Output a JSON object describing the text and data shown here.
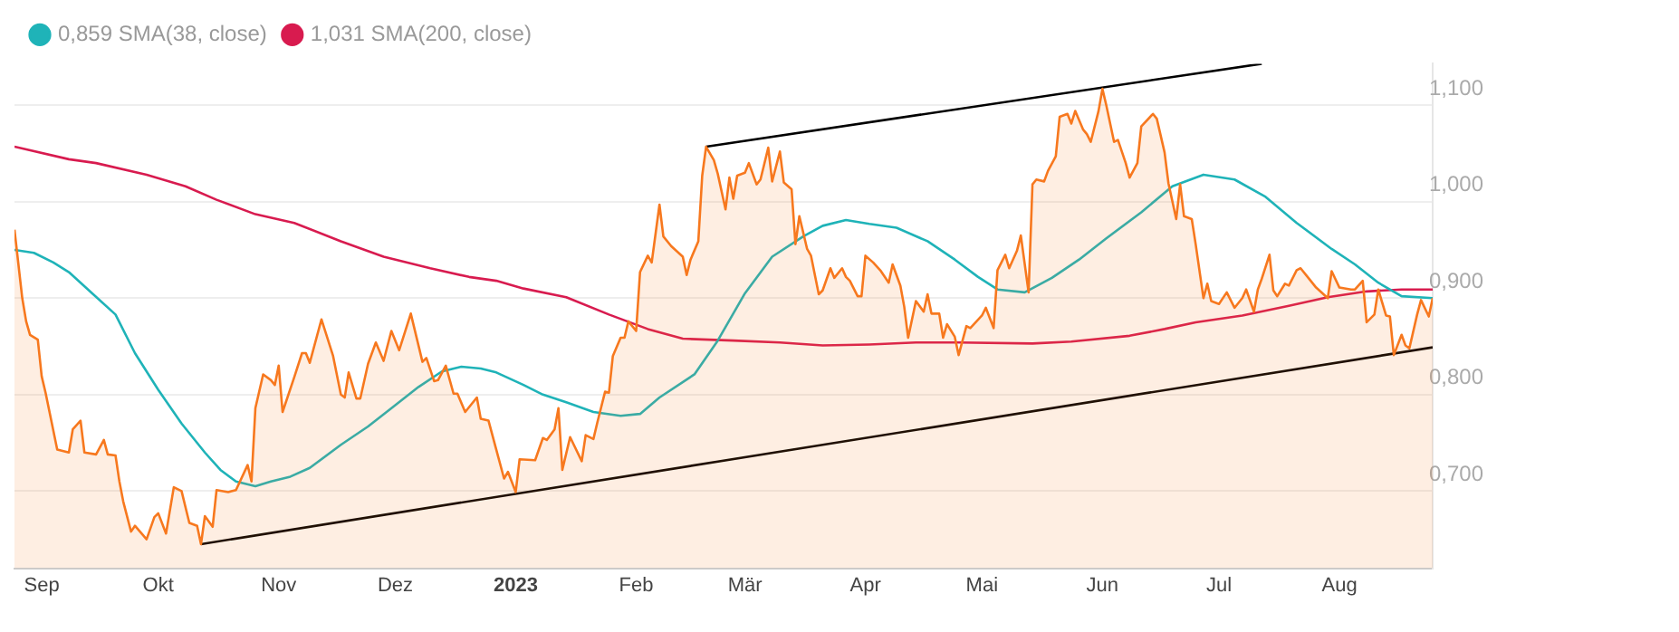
{
  "chart_data": {
    "type": "line",
    "legend": "top left",
    "grid": "y",
    "marker": "none",
    "line_style": "solid",
    "xlim": [
      "2022-08-25",
      "2023-08-25"
    ],
    "xticks": [
      {
        "value": "2022-09-01",
        "label": "Sep"
      },
      {
        "value": "2022-10-01",
        "label": "Okt"
      },
      {
        "value": "2022-11-01",
        "label": "Nov"
      },
      {
        "value": "2022-12-01",
        "label": "Dez"
      },
      {
        "value": "2023-01-01",
        "label": "2023"
      },
      {
        "value": "2023-02-01",
        "label": "Feb"
      },
      {
        "value": "2023-03-01",
        "label": "Mär"
      },
      {
        "value": "2023-04-01",
        "label": "Apr"
      },
      {
        "value": "2023-05-01",
        "label": "Mai"
      },
      {
        "value": "2023-06-01",
        "label": "Jun"
      },
      {
        "value": "2023-07-01",
        "label": "Jul"
      },
      {
        "value": "2023-08-01",
        "label": "Aug"
      }
    ],
    "ylim": [
      0.62,
      1.143
    ],
    "yticks": [
      {
        "value": 0.7,
        "label": "0,700"
      },
      {
        "value": 0.8,
        "label": "0,800"
      },
      {
        "value": 0.9,
        "label": "0,900"
      },
      {
        "value": 1.0,
        "label": "1,000"
      },
      {
        "value": 1.1,
        "label": "1,100"
      }
    ],
    "series": [
      {
        "type": "area",
        "color": "#f7781e",
        "x": [
          "2022-08-25",
          "2022-08-27",
          "2022-08-28",
          "2022-08-29",
          "2022-08-31",
          "2022-09-01",
          "2022-09-02",
          "2022-09-05",
          "2022-09-08",
          "2022-09-09",
          "2022-09-11",
          "2022-09-12",
          "2022-09-15",
          "2022-09-17",
          "2022-09-18",
          "2022-09-20",
          "2022-09-21",
          "2022-09-22",
          "2022-09-24",
          "2022-09-25",
          "2022-09-28",
          "2022-09-30",
          "2022-10-01",
          "2022-10-03",
          "2022-10-05",
          "2022-10-07",
          "2022-10-09",
          "2022-10-11",
          "2022-10-12",
          "2022-10-13",
          "2022-10-15",
          "2022-10-16",
          "2022-10-19",
          "2022-10-21",
          "2022-10-24",
          "2022-10-25",
          "2022-10-26",
          "2022-10-28",
          "2022-10-30",
          "2022-10-31",
          "2022-11-01",
          "2022-11-02",
          "2022-11-05",
          "2022-11-07",
          "2022-11-08",
          "2022-11-09",
          "2022-11-12",
          "2022-11-15",
          "2022-11-17",
          "2022-11-18",
          "2022-11-19",
          "2022-11-21",
          "2022-11-22",
          "2022-11-24",
          "2022-11-26",
          "2022-11-28",
          "2022-11-30",
          "2022-12-02",
          "2022-12-05",
          "2022-12-08",
          "2022-12-09",
          "2022-12-11",
          "2022-12-12",
          "2022-12-14",
          "2022-12-16",
          "2022-12-17",
          "2022-12-19",
          "2022-12-22",
          "2022-12-23",
          "2022-12-25",
          "2022-12-27",
          "2022-12-29",
          "2022-12-30",
          "2023-01-01",
          "2023-01-02",
          "2023-01-06",
          "2023-01-08",
          "2023-01-09",
          "2023-01-11",
          "2023-01-12",
          "2023-01-13",
          "2023-01-15",
          "2023-01-18",
          "2023-01-19",
          "2023-01-21",
          "2023-01-22",
          "2023-01-24",
          "2023-01-25",
          "2023-01-26",
          "2023-01-28",
          "2023-01-29",
          "2023-01-30",
          "2023-02-01",
          "2023-02-02",
          "2023-02-04",
          "2023-02-05",
          "2023-02-07",
          "2023-02-08",
          "2023-02-10",
          "2023-02-13",
          "2023-02-14",
          "2023-02-15",
          "2023-02-17",
          "2023-02-18",
          "2023-02-19",
          "2023-02-21",
          "2023-02-22",
          "2023-02-24",
          "2023-02-25",
          "2023-02-26",
          "2023-02-27",
          "2023-03-01",
          "2023-03-02",
          "2023-03-04",
          "2023-03-05",
          "2023-03-07",
          "2023-03-08",
          "2023-03-10",
          "2023-03-11",
          "2023-03-13",
          "2023-03-14",
          "2023-03-15",
          "2023-03-17",
          "2023-03-18",
          "2023-03-20",
          "2023-03-21",
          "2023-03-23",
          "2023-03-24",
          "2023-03-26",
          "2023-03-27",
          "2023-03-28",
          "2023-03-30",
          "2023-03-31",
          "2023-04-01",
          "2023-04-03",
          "2023-04-05",
          "2023-04-07",
          "2023-04-08",
          "2023-04-10",
          "2023-04-11",
          "2023-04-12",
          "2023-04-14",
          "2023-04-16",
          "2023-04-17",
          "2023-04-18",
          "2023-04-20",
          "2023-04-21",
          "2023-04-22",
          "2023-04-24",
          "2023-04-25",
          "2023-04-27",
          "2023-04-28",
          "2023-05-01",
          "2023-05-02",
          "2023-05-04",
          "2023-05-05",
          "2023-05-07",
          "2023-05-08",
          "2023-05-10",
          "2023-05-11",
          "2023-05-13",
          "2023-05-14",
          "2023-05-15",
          "2023-05-17",
          "2023-05-18",
          "2023-05-20",
          "2023-05-21",
          "2023-05-23",
          "2023-05-24",
          "2023-05-25",
          "2023-05-27",
          "2023-05-28",
          "2023-05-29",
          "2023-05-31",
          "2023-06-01",
          "2023-06-02",
          "2023-06-04",
          "2023-06-05",
          "2023-06-07",
          "2023-06-08",
          "2023-06-10",
          "2023-06-11",
          "2023-06-14",
          "2023-06-15",
          "2023-06-17",
          "2023-06-18",
          "2023-06-20",
          "2023-06-21",
          "2023-06-22",
          "2023-06-24",
          "2023-06-25",
          "2023-06-27",
          "2023-06-28",
          "2023-06-29",
          "2023-07-01",
          "2023-07-03",
          "2023-07-05",
          "2023-07-07",
          "2023-07-08",
          "2023-07-10",
          "2023-07-11",
          "2023-07-12",
          "2023-07-14",
          "2023-07-15",
          "2023-07-16",
          "2023-07-18",
          "2023-07-19",
          "2023-07-21",
          "2023-07-22",
          "2023-07-24",
          "2023-07-26",
          "2023-07-29",
          "2023-07-30",
          "2023-08-01",
          "2023-08-04",
          "2023-08-05",
          "2023-08-07",
          "2023-08-08",
          "2023-08-10",
          "2023-08-11",
          "2023-08-13",
          "2023-08-14",
          "2023-08-15",
          "2023-08-17",
          "2023-08-18",
          "2023-08-19",
          "2023-08-21",
          "2023-08-22",
          "2023-08-24",
          "2023-08-25"
        ],
        "values": [
          0.971,
          0.9,
          0.876,
          0.862,
          0.857,
          0.819,
          0.802,
          0.743,
          0.74,
          0.764,
          0.773,
          0.74,
          0.738,
          0.753,
          0.738,
          0.737,
          0.71,
          0.689,
          0.658,
          0.664,
          0.65,
          0.673,
          0.677,
          0.656,
          0.704,
          0.7,
          0.667,
          0.664,
          0.645,
          0.674,
          0.663,
          0.701,
          0.699,
          0.701,
          0.727,
          0.71,
          0.786,
          0.821,
          0.815,
          0.81,
          0.83,
          0.782,
          0.818,
          0.843,
          0.843,
          0.833,
          0.878,
          0.84,
          0.8,
          0.797,
          0.823,
          0.796,
          0.796,
          0.832,
          0.854,
          0.835,
          0.866,
          0.846,
          0.884,
          0.834,
          0.838,
          0.814,
          0.815,
          0.83,
          0.801,
          0.801,
          0.782,
          0.797,
          0.775,
          0.773,
          0.743,
          0.713,
          0.72,
          0.699,
          0.733,
          0.732,
          0.755,
          0.753,
          0.764,
          0.786,
          0.722,
          0.756,
          0.731,
          0.758,
          0.754,
          0.771,
          0.803,
          0.802,
          0.84,
          0.859,
          0.859,
          0.876,
          0.866,
          0.927,
          0.944,
          0.937,
          0.997,
          0.964,
          0.954,
          0.943,
          0.924,
          0.94,
          0.959,
          1.027,
          1.057,
          1.043,
          1.029,
          0.992,
          1.025,
          1.003,
          1.027,
          1.03,
          1.04,
          1.018,
          1.023,
          1.056,
          1.021,
          1.052,
          1.02,
          1.013,
          0.956,
          0.985,
          0.951,
          0.944,
          0.904,
          0.908,
          0.931,
          0.921,
          0.931,
          0.922,
          0.918,
          0.902,
          0.902,
          0.944,
          0.937,
          0.928,
          0.916,
          0.935,
          0.913,
          0.891,
          0.859,
          0.897,
          0.886,
          0.904,
          0.884,
          0.884,
          0.859,
          0.873,
          0.86,
          0.841,
          0.871,
          0.869,
          0.882,
          0.89,
          0.869,
          0.929,
          0.945,
          0.931,
          0.949,
          0.965,
          0.906,
          1.018,
          1.023,
          1.021,
          1.032,
          1.047,
          1.088,
          1.091,
          1.081,
          1.094,
          1.075,
          1.07,
          1.062,
          1.094,
          1.117,
          1.1,
          1.062,
          1.064,
          1.04,
          1.025,
          1.04,
          1.078,
          1.091,
          1.086,
          1.051,
          1.019,
          0.982,
          1.018,
          0.985,
          0.982,
          0.956,
          0.9,
          0.915,
          0.897,
          0.894,
          0.906,
          0.89,
          0.9,
          0.909,
          0.886,
          0.909,
          0.92,
          0.945,
          0.908,
          0.902,
          0.915,
          0.913,
          0.929,
          0.931,
          0.921,
          0.911,
          0.9,
          0.928,
          0.911,
          0.909,
          0.909,
          0.918,
          0.875,
          0.883,
          0.909,
          0.882,
          0.881,
          0.841,
          0.862,
          0.851,
          0.848,
          0.883,
          0.898,
          0.881,
          0.9
        ]
      },
      {
        "type": "line",
        "name": "0,859 SMA(38, close)",
        "color": "#1fb3b8",
        "x": [
          "2022-08-25",
          "2022-08-30",
          "2022-09-04",
          "2022-09-08",
          "2022-09-14",
          "2022-09-20",
          "2022-09-25",
          "2022-10-01",
          "2022-10-07",
          "2022-10-13",
          "2022-10-17",
          "2022-10-21",
          "2022-10-26",
          "2022-10-30",
          "2022-11-04",
          "2022-11-09",
          "2022-11-17",
          "2022-11-24",
          "2022-12-01",
          "2022-12-07",
          "2022-12-13",
          "2022-12-18",
          "2022-12-23",
          "2022-12-27",
          "2023-01-03",
          "2023-01-08",
          "2023-01-14",
          "2023-01-21",
          "2023-01-28",
          "2023-02-02",
          "2023-02-07",
          "2023-02-16",
          "2023-02-22",
          "2023-03-01",
          "2023-03-08",
          "2023-03-16",
          "2023-03-21",
          "2023-03-27",
          "2023-04-02",
          "2023-04-09",
          "2023-04-17",
          "2023-04-24",
          "2023-04-30",
          "2023-05-05",
          "2023-05-12",
          "2023-05-19",
          "2023-05-26",
          "2023-06-02",
          "2023-06-11",
          "2023-06-19",
          "2023-06-27",
          "2023-07-05",
          "2023-07-13",
          "2023-07-21",
          "2023-07-30",
          "2023-08-05",
          "2023-08-11",
          "2023-08-17",
          "2023-08-25"
        ],
        "values": [
          0.95,
          0.947,
          0.937,
          0.927,
          0.905,
          0.883,
          0.843,
          0.805,
          0.77,
          0.74,
          0.722,
          0.71,
          0.705,
          0.71,
          0.715,
          0.724,
          0.748,
          0.767,
          0.789,
          0.808,
          0.824,
          0.829,
          0.827,
          0.823,
          0.81,
          0.8,
          0.792,
          0.782,
          0.778,
          0.78,
          0.797,
          0.821,
          0.856,
          0.905,
          0.943,
          0.964,
          0.975,
          0.981,
          0.977,
          0.973,
          0.959,
          0.94,
          0.922,
          0.909,
          0.906,
          0.921,
          0.94,
          0.962,
          0.989,
          1.016,
          1.028,
          1.023,
          1.005,
          0.978,
          0.951,
          0.935,
          0.916,
          0.902,
          0.9
        ]
      },
      {
        "type": "line",
        "name": "1,031 SMA(200, close)",
        "color": "#d81b4f",
        "x": [
          "2022-08-25",
          "2022-09-08",
          "2022-09-15",
          "2022-09-28",
          "2022-10-08",
          "2022-10-16",
          "2022-10-26",
          "2022-11-05",
          "2022-11-17",
          "2022-11-28",
          "2022-12-10",
          "2022-12-20",
          "2022-12-27",
          "2023-01-03",
          "2023-01-14",
          "2023-01-25",
          "2023-02-04",
          "2023-02-13",
          "2023-02-26",
          "2023-03-10",
          "2023-03-21",
          "2023-04-02",
          "2023-04-14",
          "2023-04-25",
          "2023-05-14",
          "2023-05-24",
          "2023-06-08",
          "2023-06-17",
          "2023-06-25",
          "2023-07-07",
          "2023-07-19",
          "2023-07-29",
          "2023-08-08",
          "2023-08-17",
          "2023-08-25"
        ],
        "values": [
          1.057,
          1.044,
          1.04,
          1.028,
          1.016,
          1.002,
          0.987,
          0.978,
          0.959,
          0.943,
          0.931,
          0.922,
          0.918,
          0.91,
          0.901,
          0.883,
          0.868,
          0.858,
          0.856,
          0.854,
          0.851,
          0.852,
          0.854,
          0.854,
          0.853,
          0.855,
          0.861,
          0.868,
          0.875,
          0.882,
          0.892,
          0.901,
          0.907,
          0.909,
          0.909
        ]
      },
      {
        "type": "line",
        "color": "#000000",
        "x": [
          "2022-10-12",
          "2023-08-25"
        ],
        "values": [
          0.645,
          0.849
        ]
      },
      {
        "type": "line",
        "color": "#000000",
        "x": [
          "2023-02-19",
          "2023-07-12"
        ],
        "values": [
          1.057,
          1.143
        ]
      }
    ]
  }
}
